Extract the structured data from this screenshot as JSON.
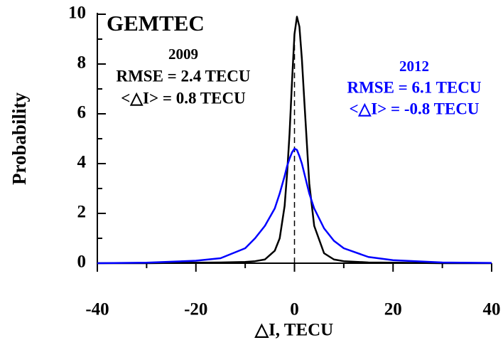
{
  "chart_data": {
    "type": "line",
    "title": "GEMTEC",
    "x_label": "△I, TECU",
    "y_label": "Probability",
    "x": [
      -40,
      -30,
      -20,
      -15,
      -10,
      -8,
      -6,
      -4,
      -3,
      -2,
      -1.5,
      -1,
      -0.5,
      0,
      0.5,
      1,
      1.5,
      2,
      3,
      4,
      6,
      8,
      10,
      15,
      20,
      30,
      40
    ],
    "series": [
      {
        "name": "2009",
        "color": "#000000",
        "stats": [
          "RMSE = 2.4 TECU",
          "<△I> = 0.8 TECU"
        ],
        "values": [
          0,
          0,
          0.02,
          0.03,
          0.05,
          0.08,
          0.15,
          0.5,
          1.0,
          2.3,
          3.6,
          5.2,
          7.3,
          9.2,
          9.9,
          9.5,
          8.2,
          6.5,
          3.2,
          1.5,
          0.4,
          0.15,
          0.08,
          0.03,
          0.02,
          0,
          0
        ]
      },
      {
        "name": "2012",
        "color": "#0000ff",
        "stats": [
          "RMSE = 6.1 TECU",
          "<△I> = -0.8 TECU"
        ],
        "values": [
          0,
          0.02,
          0.1,
          0.2,
          0.6,
          1.0,
          1.5,
          2.2,
          2.8,
          3.5,
          3.9,
          4.2,
          4.45,
          4.6,
          4.55,
          4.3,
          4.0,
          3.6,
          2.8,
          2.2,
          1.4,
          0.9,
          0.6,
          0.25,
          0.12,
          0.03,
          0.01
        ]
      }
    ],
    "xlim": [
      -40,
      40
    ],
    "xticks": [
      -40,
      -20,
      0,
      20,
      40
    ],
    "xminorticks": [
      -30,
      -10,
      10,
      30
    ],
    "ylim": [
      0,
      10
    ],
    "yticks": [
      0,
      2,
      4,
      6,
      8,
      10
    ],
    "yminorticks": [
      1,
      3,
      5,
      7,
      9
    ],
    "reference_line_x": 0
  }
}
